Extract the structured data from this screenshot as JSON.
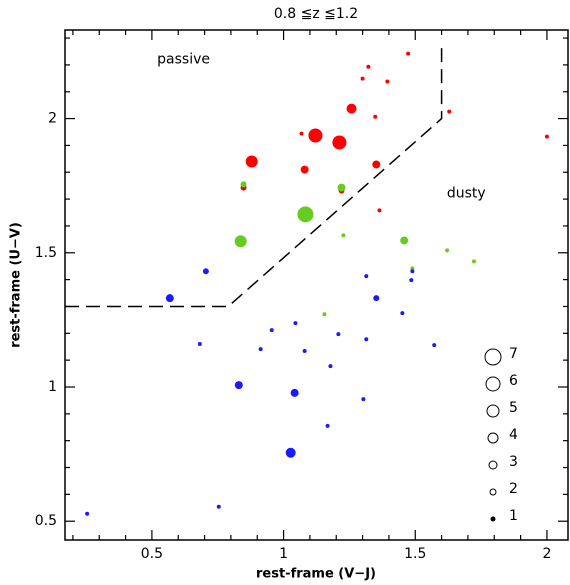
{
  "chart_data": {
    "type": "scatter",
    "title": "0.8 ≦z ≦1.2",
    "x_label": "rest-frame (V−J)",
    "y_label": "rest-frame (U−V)",
    "annotations": [
      {
        "text": "passive",
        "x": 0.52,
        "y": 2.22
      },
      {
        "text": "dusty",
        "x": 1.62,
        "y": 1.72
      }
    ],
    "xlim": [
      0.17,
      2.08
    ],
    "ylim": [
      0.43,
      2.33
    ],
    "xticks": [
      0.5,
      1,
      1.5,
      2
    ],
    "yticks": [
      0.5,
      1,
      1.5,
      2
    ],
    "xminorticks": [
      0.2,
      0.3,
      0.4,
      0.6,
      0.7,
      0.8,
      0.9,
      1.1,
      1.2,
      1.3,
      1.4,
      1.6,
      1.7,
      1.8,
      1.9
    ],
    "yminorticks": [
      0.6,
      0.7,
      0.8,
      0.9,
      1.1,
      1.2,
      1.3,
      1.4,
      1.6,
      1.7,
      1.8,
      1.9,
      2.1,
      2.2,
      2.3
    ],
    "boundary": {
      "x": [
        0.17,
        0.79,
        1.6,
        1.6
      ],
      "y": [
        1.3,
        1.3,
        2.0,
        2.27
      ]
    },
    "series": [
      {
        "color": "#ff0000",
        "x": [
          1.473,
          1.322,
          1.3,
          1.394,
          1.258,
          1.348,
          1.629,
          2.0,
          1.068,
          1.121,
          1.212,
          0.879,
          1.08,
          1.352,
          0.848,
          1.22,
          1.364,
          1.083
        ],
        "y": [
          2.242,
          2.193,
          2.149,
          2.138,
          2.037,
          2.007,
          2.026,
          1.933,
          1.944,
          1.937,
          1.911,
          1.84,
          1.81,
          1.829,
          1.743,
          1.732,
          1.658,
          1.632
        ],
        "size": [
          1,
          1,
          1,
          1,
          4,
          1,
          1,
          1,
          1,
          6,
          6,
          5,
          3,
          3,
          2,
          2,
          1,
          1
        ]
      },
      {
        "color": "#66cc22",
        "x": [
          0.848,
          1.22,
          1.083,
          0.837,
          1.227,
          1.458,
          1.621,
          1.723,
          1.489,
          1.155
        ],
        "y": [
          1.755,
          1.743,
          1.643,
          1.543,
          1.565,
          1.546,
          1.509,
          1.468,
          1.442,
          1.271
        ],
        "size": [
          2,
          3,
          7,
          5,
          1,
          3,
          1,
          1,
          1,
          1
        ]
      },
      {
        "color": "#1a1aff",
        "x": [
          0.705,
          0.568,
          1.314,
          1.489,
          1.485,
          1.352,
          1.451,
          1.045,
          0.955,
          1.208,
          0.682,
          1.314,
          1.572,
          0.913,
          1.08,
          1.178,
          0.83,
          1.042,
          1.303,
          1.167,
          1.027,
          0.254,
          0.754
        ],
        "y": [
          1.431,
          1.331,
          1.413,
          1.431,
          1.398,
          1.331,
          1.275,
          1.238,
          1.212,
          1.197,
          1.16,
          1.178,
          1.156,
          1.141,
          1.134,
          1.078,
          1.007,
          0.978,
          0.955,
          0.855,
          0.755,
          0.528,
          0.554
        ],
        "size": [
          2,
          3,
          1,
          1,
          1,
          2,
          1,
          1,
          1,
          1,
          1,
          1,
          1,
          1,
          1,
          1,
          3,
          3,
          1,
          1,
          4,
          1,
          1
        ]
      }
    ],
    "size_legend": [
      7,
      6,
      5,
      4,
      3,
      2,
      1
    ]
  }
}
